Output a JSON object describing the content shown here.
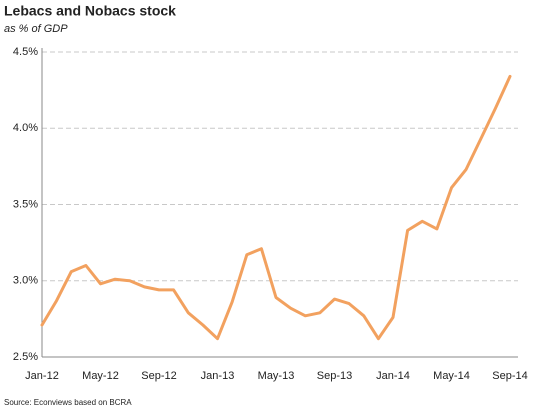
{
  "chart_data": {
    "type": "line",
    "title": "Lebacs and Nobacs stock",
    "subtitle": "as % of GDP",
    "source": "Source: Econviews based on BCRA",
    "categories": [
      "Jan-12",
      null,
      null,
      null,
      "May-12",
      null,
      null,
      null,
      "Sep-12",
      null,
      null,
      null,
      "Jan-13",
      null,
      null,
      null,
      "May-13",
      null,
      null,
      null,
      "Sep-13",
      null,
      null,
      null,
      "Jan-14",
      null,
      null,
      null,
      "May-14",
      null,
      null,
      null,
      "Sep-14"
    ],
    "values": [
      2.71,
      2.87,
      3.06,
      3.1,
      2.98,
      3.01,
      3.0,
      2.96,
      2.94,
      2.94,
      2.79,
      2.71,
      2.62,
      2.86,
      3.17,
      3.21,
      2.89,
      2.82,
      2.77,
      2.79,
      2.88,
      2.85,
      2.77,
      2.62,
      2.76,
      3.33,
      3.39,
      3.34,
      3.61,
      3.73,
      3.93,
      4.13,
      4.34
    ],
    "color": "#f2a15f",
    "ylim": [
      2.5,
      4.5
    ],
    "yticks": [
      {
        "value": 2.5,
        "label": "2.5%"
      },
      {
        "value": 3.0,
        "label": "3.0%"
      },
      {
        "value": 3.5,
        "label": "3.5%"
      },
      {
        "value": 4.0,
        "label": "4.0%"
      },
      {
        "value": 4.5,
        "label": "4.5%"
      }
    ],
    "grid": true
  }
}
